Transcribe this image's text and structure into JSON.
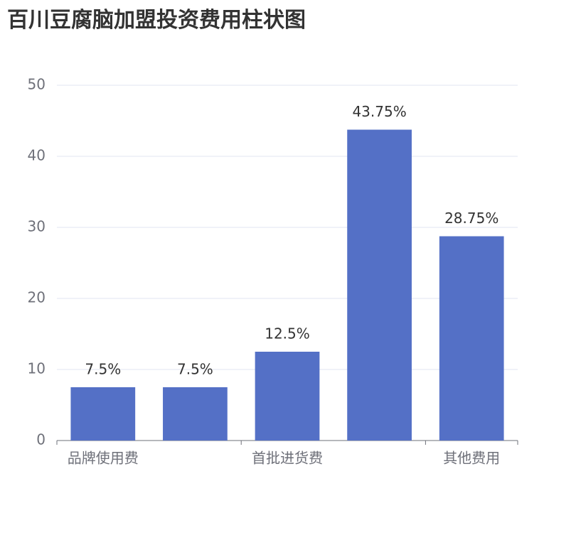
{
  "chart_data": {
    "type": "bar",
    "title": "百川豆腐脑加盟投资费用柱状图",
    "categories": [
      "品牌使用费",
      null,
      "首批进货费",
      null,
      "其他费用"
    ],
    "values": [
      7.5,
      7.5,
      12.5,
      43.75,
      28.75
    ],
    "value_labels": [
      "7.5%",
      "7.5%",
      "12.5%",
      "43.75%",
      "28.75%"
    ],
    "color": "#5470c6",
    "ylim": [
      0,
      50
    ],
    "yticks": [
      0,
      10,
      20,
      30,
      40,
      50
    ],
    "grid": true
  }
}
